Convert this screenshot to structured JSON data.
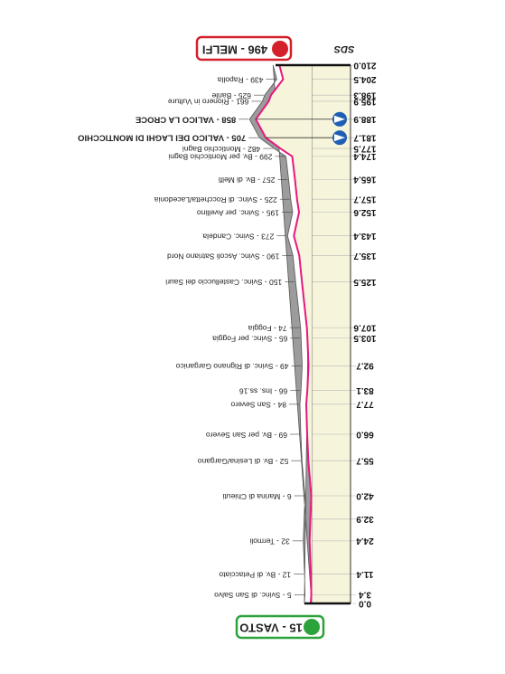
{
  "logo": "SDS",
  "chart_data": {
    "type": "area",
    "start": "15 - VASTO",
    "finish": "496 - MELFI",
    "x": [
      0,
      3.4,
      11.4,
      24.4,
      32.9,
      42.0,
      55.7,
      66.0,
      77.7,
      83.1,
      92.7,
      103.5,
      107.6,
      125.5,
      135.7,
      143.4,
      152.6,
      157.7,
      165.4,
      174.4,
      177.5,
      181.7,
      188.9,
      195.9,
      198.3,
      204.5,
      210.0
    ],
    "values": [
      15,
      5,
      12,
      32,
      20,
      6,
      52,
      69,
      84,
      66,
      49,
      65,
      74,
      150,
      190,
      273,
      195,
      225,
      257,
      299,
      482,
      705,
      858,
      661,
      625,
      439,
      496
    ],
    "labels": [
      null,
      "5 - Svinc. di San Salvo",
      "12 - Bv. di Petacciato",
      "32 - Termoli",
      null,
      "6 - Marina di Chieuti",
      "52 - Bv. di Lesina/Gargano",
      "69 - Bv. per San Severo",
      "84 - San Severo",
      "66 - Ins. ss.16",
      "49 - Svinc. di Rignano Garganico",
      "65 - Svinc. per Foggia",
      "74 - Foggia",
      "150 - Svinc. Castelluccio dei Sauri",
      "190 - Svinc. Ascoli Satriano Nord",
      "273 - Svinc. Candela",
      "195 - Svinc. per Avellino",
      "225 - Svinc. di Rocchetta/Lacedonia",
      "257 - Bv. di Melfi",
      "299 - Bv. per Monticchio Bagni",
      "482 - Monticchio Bagni",
      "705 - VALICO DEI LAGHI DI MONTICCHIO",
      "858 - VALICO LA CROCE",
      "661 - Rionero in Vulture",
      "625 - Barile",
      "439 - Rapolla",
      null
    ],
    "xlim": [
      0,
      210
    ],
    "xticks": [
      {
        "value": 0,
        "label": "0.0"
      },
      3.4,
      11.4,
      24.4,
      32.9,
      {
        "value": 42,
        "label": "42.0"
      },
      55.7,
      {
        "value": 66,
        "label": "66.0"
      },
      77.7,
      83.1,
      92.7,
      103.5,
      107.6,
      125.5,
      135.7,
      143.4,
      152.6,
      157.7,
      165.4,
      174.4,
      177.5,
      181.7,
      188.9,
      195.9,
      198.3,
      204.5,
      {
        "value": 210,
        "label": "210.0"
      }
    ],
    "ylim": [
      0,
      1000
    ],
    "line_color": "#e6197f",
    "fill": "#f6f4da",
    "shade": "#9c9c9c",
    "climb_color": "#1e5fb4"
  }
}
